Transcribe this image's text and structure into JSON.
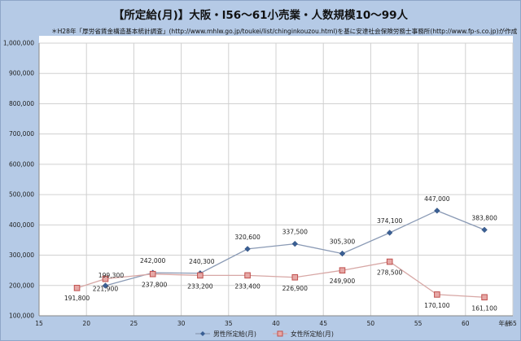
{
  "chart_data": {
    "type": "line",
    "title": "【所定給(月)】大阪・l56～61小売業・人数規模10～99人",
    "subtitle": "＊H28年「厚労省賃金構造基本統計調査」(http://www.mhlw.go.jp/toukei/list/chinginkouzou.html)を基に安達社会保険労務士事務所(http://www.fp-s.co.jp)が作成",
    "xlabel": "年齢",
    "ylabel": "",
    "xlim": [
      15,
      65
    ],
    "ylim": [
      100000,
      1000000
    ],
    "x_ticks": [
      "15",
      "20",
      "25",
      "30",
      "35",
      "40",
      "45",
      "50",
      "55",
      "60",
      "65"
    ],
    "y_ticks": [
      "100,000",
      "200,000",
      "300,000",
      "400,000",
      "500,000",
      "600,000",
      "700,000",
      "800,000",
      "900,000",
      "1,000,000"
    ],
    "grid": true,
    "legend_position": "bottom",
    "series": [
      {
        "name": "男性所定給(月)",
        "color": "#3a5f94",
        "marker": "diamond",
        "points": [
          {
            "x": 22,
            "y": 199300,
            "label": "199,300"
          },
          {
            "x": 27,
            "y": 242000,
            "label": "242,000"
          },
          {
            "x": 32,
            "y": 240300,
            "label": "240,300"
          },
          {
            "x": 37,
            "y": 320600,
            "label": "320,600"
          },
          {
            "x": 42,
            "y": 337500,
            "label": "337,500"
          },
          {
            "x": 47,
            "y": 305300,
            "label": "305,300"
          },
          {
            "x": 52,
            "y": 374100,
            "label": "374,100"
          },
          {
            "x": 57,
            "y": 447000,
            "label": "447,000"
          },
          {
            "x": 62,
            "y": 383800,
            "label": "383,800"
          }
        ]
      },
      {
        "name": "女性所定給(月)",
        "color": "#c0504d",
        "marker": "square",
        "points": [
          {
            "x": 19,
            "y": 191800,
            "label": "191,800"
          },
          {
            "x": 22,
            "y": 221900,
            "label": "221,900"
          },
          {
            "x": 27,
            "y": 237800,
            "label": "237,800"
          },
          {
            "x": 32,
            "y": 233200,
            "label": "233,200"
          },
          {
            "x": 37,
            "y": 233400,
            "label": "233,400"
          },
          {
            "x": 42,
            "y": 226900,
            "label": "226,900"
          },
          {
            "x": 47,
            "y": 249900,
            "label": "249,900"
          },
          {
            "x": 52,
            "y": 278500,
            "label": "278,500"
          },
          {
            "x": 57,
            "y": 170100,
            "label": "170,100"
          },
          {
            "x": 62,
            "y": 161100,
            "label": "161,100"
          }
        ]
      }
    ]
  }
}
